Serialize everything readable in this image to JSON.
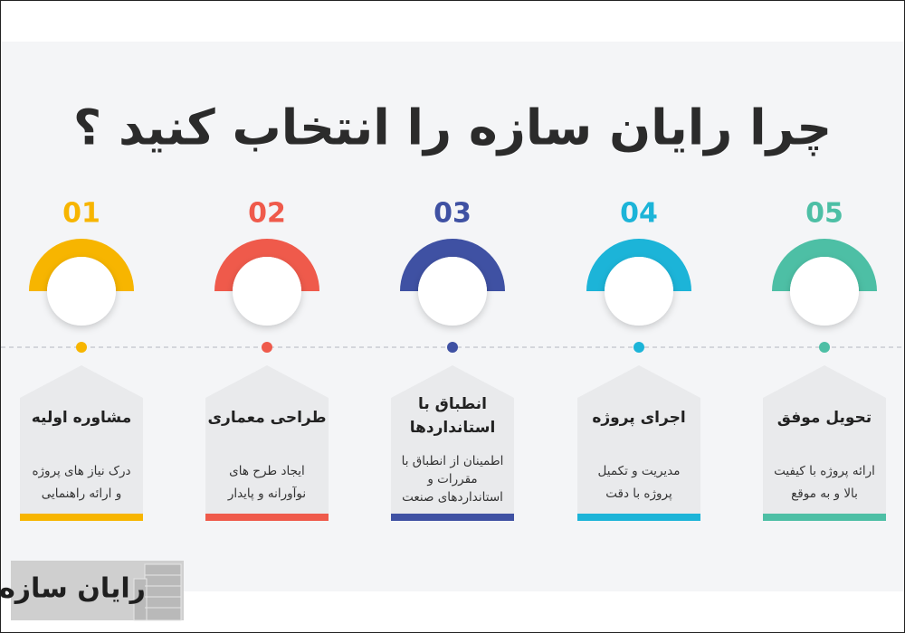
{
  "header": {
    "title": "چرا رایان سازه را انتخاب کنید ؟"
  },
  "steps": [
    {
      "number": "01",
      "color": "#f7b500",
      "title": [
        "مشاوره اولیه"
      ],
      "description": [
        "درک نیاز های پروژه",
        "و ارائه راهنمایی"
      ]
    },
    {
      "number": "02",
      "color": "#ef5a4b",
      "title": [
        "طراحی معماری"
      ],
      "description": [
        "ایجاد طرح های",
        "نوآورانه و پایدار"
      ]
    },
    {
      "number": "03",
      "color": "#3f51a3",
      "title": [
        "انطباق با",
        "استانداردها"
      ],
      "description": [
        "اطمینان از انطباق با",
        "مقررات و",
        "استانداردهای صنعت"
      ]
    },
    {
      "number": "04",
      "color": "#1cb4d8",
      "title": [
        "اجرای پروژه"
      ],
      "description": [
        "مدیریت و تکمیل",
        "پروژه با دقت"
      ]
    },
    {
      "number": "05",
      "color": "#4dbfa5",
      "title": [
        "تحویل موفق"
      ],
      "description": [
        "ارائه پروژه با کیفیت",
        "بالا و به موقع"
      ]
    }
  ],
  "logo": {
    "text": "رایان سازه"
  }
}
